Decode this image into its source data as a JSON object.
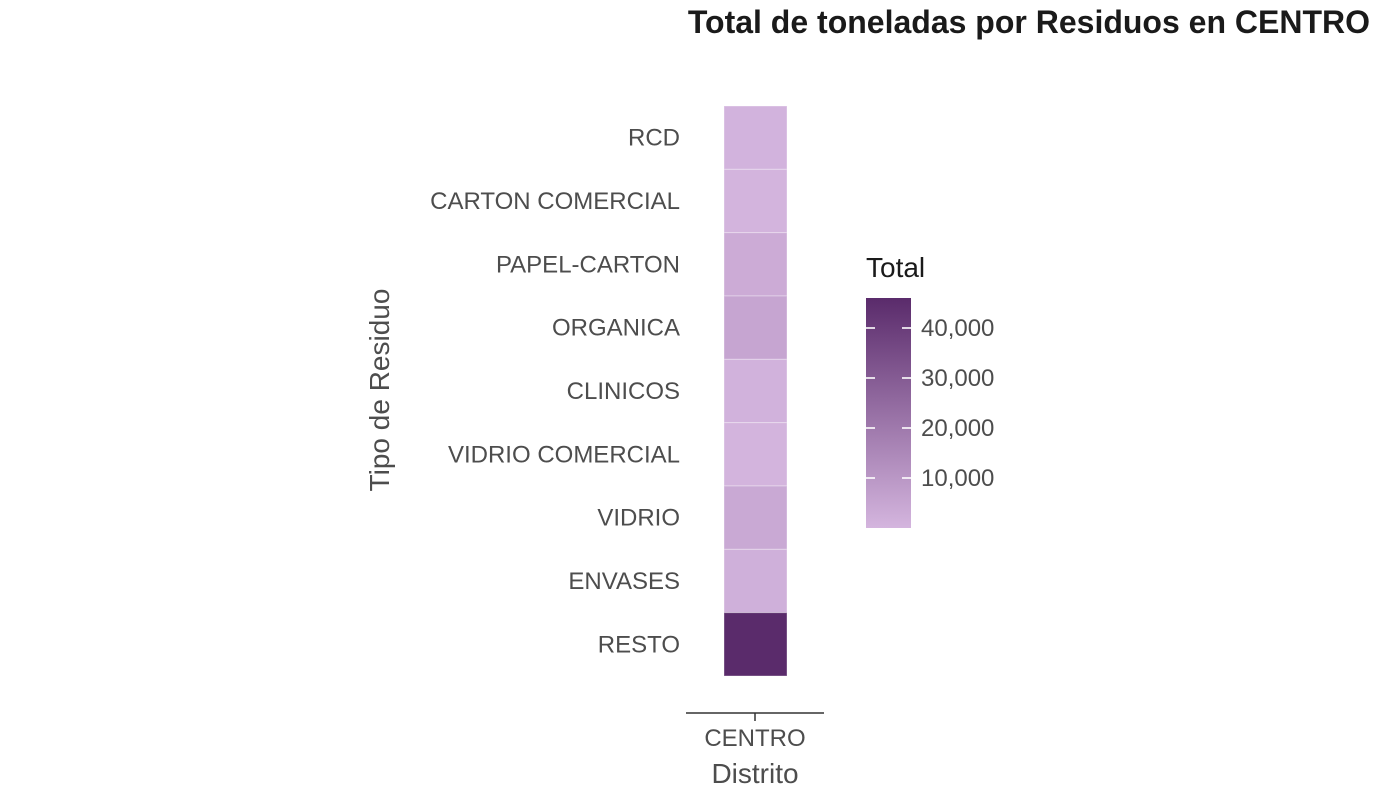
{
  "chart_data": {
    "type": "heatmap",
    "title": "Total de toneladas por Residuos en CENTRO",
    "xlabel": "Distrito",
    "ylabel": "Tipo de Residuo",
    "x_categories": [
      "CENTRO"
    ],
    "y_categories": [
      "RCD",
      "CARTON COMERCIAL",
      "PAPEL-CARTON",
      "ORGANICA",
      "CLINICOS",
      "VIDRIO COMERCIAL",
      "VIDRIO",
      "ENVASES",
      "RESTO"
    ],
    "values": [
      600,
      500,
      3200,
      5400,
      1000,
      300,
      4000,
      1800,
      46000
    ],
    "legend": {
      "title": "Total",
      "ticks": [
        10000,
        20000,
        30000,
        40000
      ],
      "tick_labels": [
        "10,000",
        "20,000",
        "30,000",
        "40,000"
      ],
      "range": [
        0,
        46000
      ],
      "placement": "right"
    },
    "colors": {
      "low": "#d4b5de",
      "high": "#5a2b6b"
    },
    "grid": false
  }
}
